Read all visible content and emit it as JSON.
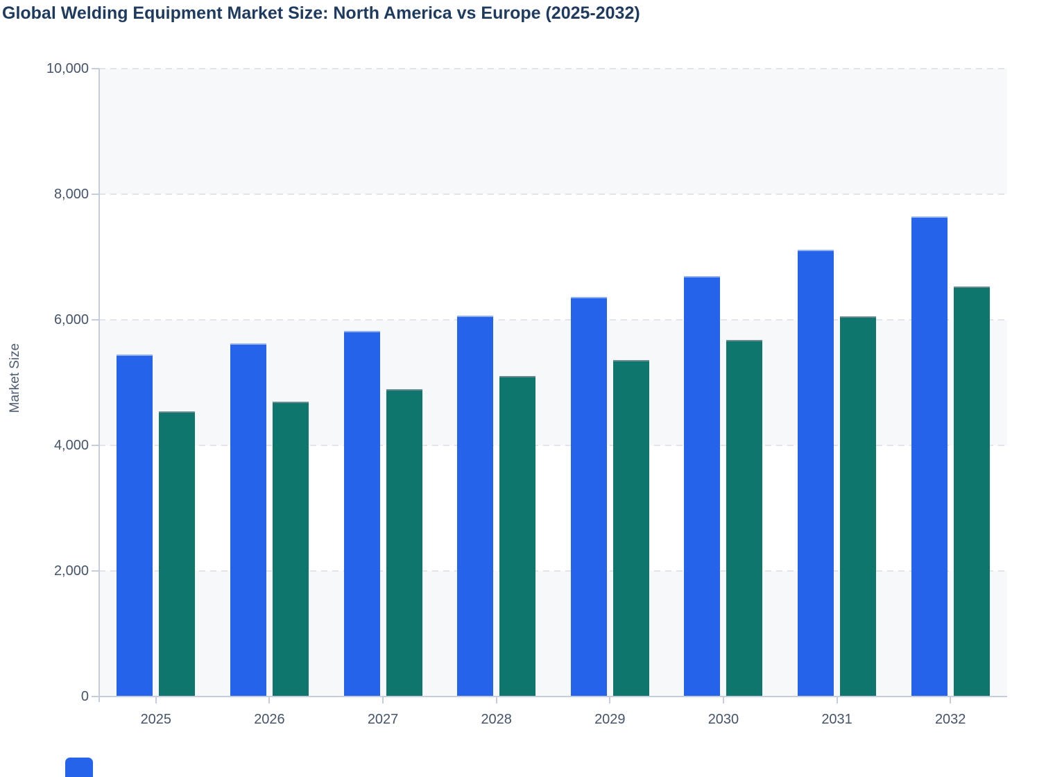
{
  "chart_data": {
    "type": "bar",
    "title": "Global Welding Equipment Market Size: North America vs Europe (2025-2032)",
    "ylabel": "Market Size",
    "xlabel": "",
    "categories": [
      "2025",
      "2026",
      "2027",
      "2028",
      "2029",
      "2030",
      "2031",
      "2032"
    ],
    "series": [
      {
        "name": "North America",
        "color": "#2563eb",
        "values": [
          5450,
          5630,
          5820,
          6070,
          6360,
          6700,
          7120,
          7650
        ]
      },
      {
        "name": "Europe",
        "color": "#0f766e",
        "values": [
          4540,
          4700,
          4890,
          5100,
          5360,
          5680,
          6060,
          6530
        ]
      }
    ],
    "ylim": [
      0,
      10000
    ],
    "ytick_values": [
      0,
      2000,
      4000,
      6000,
      8000,
      10000
    ],
    "ytick_labels": [
      "0",
      "2,000",
      "4,000",
      "6,000",
      "8,000",
      "10,000"
    ],
    "grid": "dashed-horizontal",
    "band_fill": "#f6f8fa",
    "legend": {
      "cutoff_swatch_color": "#2563eb"
    }
  },
  "style_colors": {
    "title": "#1e3a5f",
    "axis_label": "#45536b",
    "axis_line": "#c5cddd",
    "gridline": "#e2e4e9"
  }
}
